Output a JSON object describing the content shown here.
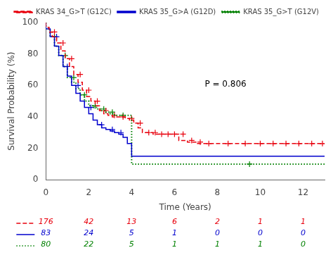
{
  "chart_data": {
    "type": "step",
    "xlabel": "Time (Years)",
    "ylabel": "Survival Probability (%)",
    "xlim": [
      0,
      13
    ],
    "ylim": [
      0,
      100
    ],
    "xticks": [
      0,
      2,
      4,
      6,
      8,
      10,
      12
    ],
    "yticks": [
      0,
      20,
      40,
      60,
      80,
      100
    ],
    "grid": false,
    "legend": "upper right",
    "annotations": [
      "P = 0.806"
    ],
    "at_risk_times": [
      0,
      2,
      4,
      6,
      8,
      10,
      12
    ],
    "series": [
      {
        "name": "KRAS 34_G>T (G12C)",
        "color": "#e8000d",
        "line_style": "dashed",
        "marker": "plus",
        "x": [
          0,
          0.15,
          0.3,
          0.5,
          0.7,
          0.9,
          1.1,
          1.3,
          1.5,
          1.7,
          1.9,
          2.1,
          2.3,
          2.5,
          2.7,
          2.9,
          3.1,
          3.3,
          3.5,
          3.7,
          3.9,
          4.1,
          4.3,
          4.5,
          4.7,
          5.0,
          5.3,
          5.6,
          5.9,
          6.2,
          6.6,
          7.0,
          7.5,
          8.0,
          9.0,
          10.0,
          11.0,
          12.0,
          13.0
        ],
        "values": [
          100,
          97,
          94,
          91,
          87,
          82,
          77,
          72,
          67,
          62,
          57,
          53,
          50,
          47,
          44,
          42,
          41,
          40,
          40,
          40,
          39,
          38,
          36,
          33,
          30,
          30,
          29,
          29,
          29,
          29,
          25,
          24,
          23,
          23,
          23,
          23,
          23,
          23,
          23
        ],
        "censor_x": [
          0.4,
          0.8,
          1.2,
          1.6,
          2.0,
          2.4,
          2.8,
          3.2,
          3.6,
          4.0,
          4.4,
          4.8,
          5.1,
          5.4,
          5.7,
          6.0,
          6.4,
          6.8,
          7.2,
          7.6,
          8.5,
          9.3,
          10.0,
          10.6,
          11.2,
          11.8,
          12.4,
          12.9
        ],
        "censor_values": [
          94,
          87,
          77,
          67,
          57,
          50,
          44,
          41,
          40,
          39,
          36,
          30,
          30,
          29,
          29,
          29,
          29,
          25,
          24,
          23,
          23,
          23,
          23,
          23,
          23,
          23,
          23,
          23
        ],
        "at_risk": [
          176,
          42,
          13,
          6,
          2,
          1,
          1
        ]
      },
      {
        "name": "KRAS 35_G>A (G12D)",
        "color": "#0000cd",
        "line_style": "solid",
        "marker": "plus",
        "x": [
          0,
          0.2,
          0.4,
          0.6,
          0.8,
          1.0,
          1.2,
          1.4,
          1.6,
          1.8,
          2.0,
          2.2,
          2.4,
          2.6,
          2.8,
          3.0,
          3.2,
          3.4,
          3.6,
          3.8,
          4.0,
          4.15,
          4.3,
          5.0,
          6.0,
          7.0,
          7.9,
          13.0
        ],
        "values": [
          100,
          96,
          91,
          85,
          79,
          72,
          66,
          60,
          55,
          50,
          46,
          42,
          38,
          35,
          33,
          32,
          31,
          30,
          29,
          27,
          23,
          15,
          15,
          15,
          15,
          15,
          15,
          15
        ],
        "censor_x": [
          0.5,
          1.0,
          1.5,
          2.1,
          2.6,
          3.1,
          3.5
        ],
        "censor_values": [
          91,
          72,
          60,
          46,
          35,
          32,
          30
        ],
        "at_risk": [
          83,
          24,
          5,
          1,
          0,
          0,
          0
        ]
      },
      {
        "name": "KRAS 35_G>T (G12V)",
        "color": "#008000",
        "line_style": "dotted",
        "marker": "plus",
        "x": [
          0,
          0.2,
          0.4,
          0.6,
          0.8,
          1.0,
          1.2,
          1.4,
          1.6,
          1.8,
          2.0,
          2.2,
          2.4,
          2.6,
          2.8,
          3.0,
          3.2,
          3.5,
          3.8,
          4.0,
          4.2,
          4.3,
          5.0,
          6.0,
          7.0,
          8.0,
          9.5,
          10.0,
          11.0,
          12.0,
          13.0
        ],
        "values": [
          100,
          96,
          91,
          85,
          79,
          72,
          65,
          62,
          58,
          54,
          50,
          47,
          46,
          45,
          44,
          43,
          42,
          41,
          41,
          41,
          10,
          10,
          10,
          10,
          10,
          10,
          10,
          10,
          10,
          10,
          10
        ],
        "censor_x": [
          0.4,
          0.9,
          1.3,
          1.8,
          2.3,
          2.7,
          3.1,
          3.6,
          9.5
        ],
        "censor_values": [
          91,
          79,
          65,
          54,
          47,
          45,
          43,
          41,
          10
        ],
        "at_risk": [
          80,
          22,
          5,
          1,
          1,
          1,
          0
        ]
      }
    ]
  }
}
